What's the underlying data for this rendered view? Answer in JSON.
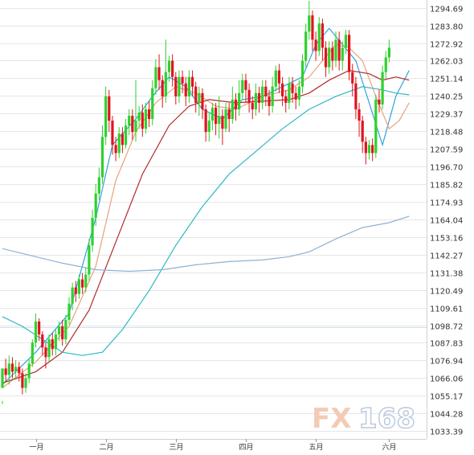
{
  "chart_data": {
    "type": "candlestick",
    "instrument_note": "",
    "ylim": [
      1028.5,
      1299.5
    ],
    "y_ticks": [
      "1294.69",
      "1283.80",
      "1272.92",
      "1262.03",
      "1251.14",
      "1240.25",
      "1229.37",
      "1218.48",
      "1207.59",
      "1196.70",
      "1185.82",
      "1174.93",
      "1164.04",
      "1153.16",
      "1142.27",
      "1131.38",
      "1120.49",
      "1109.61",
      "1098.72",
      "1087.83",
      "1076.94",
      "1066.06",
      "1055.17",
      "1044.28",
      "1033.39"
    ],
    "x_ticks": [
      {
        "label": "一月",
        "bar": 10
      },
      {
        "label": "二月",
        "bar": 31
      },
      {
        "label": "三月",
        "bar": 52
      },
      {
        "label": "四月",
        "bar": 73
      },
      {
        "label": "五月",
        "bar": 94
      },
      {
        "label": "六月",
        "bar": 116
      }
    ],
    "grid": true,
    "colors": {
      "up": "#2ed12e",
      "down": "#e0141e",
      "ma_short": "#2fa3dd",
      "ma_tan": "#e8a27c",
      "ma_red": "#b22a2a",
      "ma_teal": "#31b6c6",
      "ma_long": "#8fb1d6"
    },
    "candles": [
      [
        1060,
        1072,
        1052,
        1050
      ],
      [
        1072,
        1068,
        1078,
        1064
      ],
      [
        1068,
        1075,
        1080,
        1062
      ],
      [
        1075,
        1070,
        1079,
        1066
      ],
      [
        1070,
        1073,
        1077,
        1065
      ],
      [
        1073,
        1069,
        1076,
        1064
      ],
      [
        1069,
        1060,
        1072,
        1056
      ],
      [
        1060,
        1066,
        1069,
        1057
      ],
      [
        1066,
        1075,
        1078,
        1063
      ],
      [
        1075,
        1088,
        1090,
        1073
      ],
      [
        1088,
        1101,
        1106,
        1085
      ],
      [
        1101,
        1093,
        1103,
        1089
      ],
      [
        1093,
        1085,
        1095,
        1080
      ],
      [
        1085,
        1079,
        1088,
        1072
      ],
      [
        1079,
        1090,
        1093,
        1076
      ],
      [
        1090,
        1084,
        1094,
        1080
      ],
      [
        1084,
        1093,
        1096,
        1080
      ],
      [
        1093,
        1098,
        1101,
        1089
      ],
      [
        1098,
        1090,
        1102,
        1086
      ],
      [
        1090,
        1102,
        1105,
        1087
      ],
      [
        1102,
        1112,
        1116,
        1099
      ],
      [
        1112,
        1122,
        1125,
        1108
      ],
      [
        1122,
        1118,
        1126,
        1113
      ],
      [
        1118,
        1127,
        1130,
        1115
      ],
      [
        1127,
        1122,
        1131,
        1118
      ],
      [
        1122,
        1130,
        1134,
        1119
      ],
      [
        1130,
        1148,
        1152,
        1126
      ],
      [
        1148,
        1165,
        1170,
        1144
      ],
      [
        1165,
        1180,
        1186,
        1160
      ],
      [
        1180,
        1190,
        1196,
        1176
      ],
      [
        1190,
        1215,
        1222,
        1186
      ],
      [
        1215,
        1240,
        1246,
        1210
      ],
      [
        1240,
        1225,
        1244,
        1218
      ],
      [
        1225,
        1210,
        1228,
        1204
      ],
      [
        1210,
        1205,
        1215,
        1200
      ],
      [
        1205,
        1217,
        1221,
        1202
      ],
      [
        1217,
        1210,
        1221,
        1205
      ],
      [
        1210,
        1222,
        1226,
        1208
      ],
      [
        1222,
        1228,
        1232,
        1216
      ],
      [
        1228,
        1218,
        1232,
        1213
      ],
      [
        1218,
        1225,
        1250,
        1212
      ],
      [
        1225,
        1230,
        1234,
        1220
      ],
      [
        1230,
        1220,
        1235,
        1215
      ],
      [
        1220,
        1232,
        1236,
        1217
      ],
      [
        1232,
        1226,
        1237,
        1221
      ],
      [
        1226,
        1245,
        1250,
        1222
      ],
      [
        1245,
        1258,
        1263,
        1241
      ],
      [
        1258,
        1250,
        1266,
        1244
      ],
      [
        1250,
        1240,
        1253,
        1233
      ],
      [
        1240,
        1255,
        1275,
        1236
      ],
      [
        1255,
        1262,
        1265,
        1249
      ],
      [
        1262,
        1252,
        1266,
        1246
      ],
      [
        1252,
        1240,
        1255,
        1235
      ],
      [
        1240,
        1252,
        1256,
        1236
      ],
      [
        1252,
        1248,
        1256,
        1242
      ],
      [
        1248,
        1240,
        1252,
        1234
      ],
      [
        1240,
        1252,
        1256,
        1236
      ],
      [
        1252,
        1246,
        1256,
        1240
      ],
      [
        1246,
        1236,
        1249,
        1230
      ],
      [
        1236,
        1242,
        1246,
        1228
      ],
      [
        1242,
        1232,
        1245,
        1226
      ],
      [
        1232,
        1218,
        1235,
        1212
      ],
      [
        1218,
        1225,
        1230,
        1212
      ],
      [
        1225,
        1233,
        1236,
        1219
      ],
      [
        1233,
        1223,
        1236,
        1216
      ],
      [
        1223,
        1228,
        1240,
        1214
      ],
      [
        1228,
        1220,
        1232,
        1210
      ],
      [
        1220,
        1232,
        1236,
        1218
      ],
      [
        1232,
        1226,
        1236,
        1218
      ],
      [
        1226,
        1238,
        1246,
        1223
      ],
      [
        1238,
        1232,
        1242,
        1225
      ],
      [
        1232,
        1242,
        1250,
        1228
      ],
      [
        1242,
        1250,
        1254,
        1238
      ],
      [
        1250,
        1244,
        1254,
        1236
      ],
      [
        1244,
        1236,
        1248,
        1230
      ],
      [
        1236,
        1232,
        1240,
        1226
      ],
      [
        1232,
        1242,
        1248,
        1228
      ],
      [
        1242,
        1236,
        1246,
        1230
      ],
      [
        1236,
        1246,
        1250,
        1232
      ],
      [
        1246,
        1240,
        1250,
        1234
      ],
      [
        1240,
        1234,
        1244,
        1228
      ],
      [
        1234,
        1246,
        1252,
        1230
      ],
      [
        1246,
        1256,
        1259,
        1243
      ],
      [
        1256,
        1248,
        1260,
        1242
      ],
      [
        1248,
        1240,
        1252,
        1234
      ],
      [
        1240,
        1236,
        1244,
        1230
      ],
      [
        1236,
        1248,
        1252,
        1232
      ],
      [
        1248,
        1242,
        1252,
        1236
      ],
      [
        1242,
        1238,
        1246,
        1232
      ],
      [
        1238,
        1246,
        1250,
        1234
      ],
      [
        1246,
        1262,
        1266,
        1242
      ],
      [
        1262,
        1280,
        1285,
        1258
      ],
      [
        1280,
        1290,
        1299,
        1275
      ],
      [
        1290,
        1275,
        1293,
        1268
      ],
      [
        1275,
        1268,
        1280,
        1262
      ],
      [
        1268,
        1285,
        1289,
        1265
      ],
      [
        1285,
        1270,
        1288,
        1262
      ],
      [
        1270,
        1258,
        1274,
        1252
      ],
      [
        1258,
        1270,
        1274,
        1254
      ],
      [
        1270,
        1262,
        1274,
        1256
      ],
      [
        1262,
        1275,
        1280,
        1258
      ],
      [
        1275,
        1262,
        1280,
        1256
      ],
      [
        1262,
        1270,
        1274,
        1256
      ],
      [
        1270,
        1278,
        1281,
        1266
      ],
      [
        1278,
        1255,
        1281,
        1250
      ],
      [
        1255,
        1248,
        1260,
        1240
      ],
      [
        1248,
        1232,
        1252,
        1226
      ],
      [
        1232,
        1225,
        1236,
        1215
      ],
      [
        1225,
        1212,
        1228,
        1205
      ],
      [
        1212,
        1205,
        1215,
        1198
      ],
      [
        1205,
        1210,
        1213,
        1201
      ],
      [
        1210,
        1205,
        1214,
        1200
      ],
      [
        1205,
        1238,
        1241,
        1202
      ],
      [
        1238,
        1235,
        1244,
        1230
      ],
      [
        1235,
        1255,
        1259,
        1232
      ],
      [
        1255,
        1264,
        1268,
        1251
      ],
      [
        1264,
        1270,
        1275,
        1261
      ]
    ],
    "ma_series": [
      {
        "key": "ma_short",
        "values": [
          [
            0,
            1062
          ],
          [
            10,
            1082
          ],
          [
            20,
            1106
          ],
          [
            28,
            1165
          ],
          [
            33,
            1210
          ],
          [
            40,
            1226
          ],
          [
            45,
            1240
          ],
          [
            50,
            1252
          ],
          [
            55,
            1246
          ],
          [
            60,
            1232
          ],
          [
            66,
            1226
          ],
          [
            72,
            1238
          ],
          [
            78,
            1240
          ],
          [
            84,
            1246
          ],
          [
            90,
            1252
          ],
          [
            94,
            1272
          ],
          [
            98,
            1282
          ],
          [
            102,
            1272
          ],
          [
            106,
            1262
          ],
          [
            110,
            1236
          ],
          [
            114,
            1210
          ],
          [
            118,
            1240
          ],
          [
            122,
            1256
          ]
        ]
      },
      {
        "key": "ma_tan",
        "values": [
          [
            0,
            1060
          ],
          [
            10,
            1076
          ],
          [
            20,
            1098
          ],
          [
            28,
            1135
          ],
          [
            34,
            1188
          ],
          [
            40,
            1218
          ],
          [
            46,
            1236
          ],
          [
            52,
            1246
          ],
          [
            58,
            1242
          ],
          [
            64,
            1234
          ],
          [
            70,
            1232
          ],
          [
            78,
            1240
          ],
          [
            86,
            1244
          ],
          [
            92,
            1252
          ],
          [
            96,
            1262
          ],
          [
            100,
            1272
          ],
          [
            104,
            1270
          ],
          [
            108,
            1262
          ],
          [
            112,
            1240
          ],
          [
            116,
            1220
          ],
          [
            119,
            1225
          ],
          [
            122,
            1236
          ]
        ]
      },
      {
        "key": "ma_red",
        "values": [
          [
            0,
            1063
          ],
          [
            10,
            1070
          ],
          [
            18,
            1082
          ],
          [
            26,
            1108
          ],
          [
            34,
            1150
          ],
          [
            42,
            1192
          ],
          [
            50,
            1222
          ],
          [
            56,
            1234
          ],
          [
            62,
            1238
          ],
          [
            70,
            1236
          ],
          [
            78,
            1237
          ],
          [
            86,
            1238
          ],
          [
            92,
            1242
          ],
          [
            98,
            1250
          ],
          [
            104,
            1256
          ],
          [
            110,
            1254
          ],
          [
            114,
            1250
          ],
          [
            118,
            1252
          ],
          [
            122,
            1250
          ]
        ]
      },
      {
        "key": "ma_teal",
        "values": [
          [
            0,
            1104
          ],
          [
            6,
            1098
          ],
          [
            12,
            1090
          ],
          [
            18,
            1082
          ],
          [
            24,
            1080
          ],
          [
            30,
            1082
          ],
          [
            36,
            1096
          ],
          [
            44,
            1120
          ],
          [
            52,
            1148
          ],
          [
            60,
            1172
          ],
          [
            68,
            1192
          ],
          [
            76,
            1206
          ],
          [
            84,
            1220
          ],
          [
            92,
            1232
          ],
          [
            100,
            1240
          ],
          [
            108,
            1246
          ],
          [
            114,
            1244
          ],
          [
            118,
            1242
          ],
          [
            122,
            1241
          ]
        ]
      },
      {
        "key": "ma_long",
        "values": [
          [
            0,
            1146
          ],
          [
            8,
            1142
          ],
          [
            18,
            1137
          ],
          [
            28,
            1133
          ],
          [
            38,
            1132
          ],
          [
            48,
            1133
          ],
          [
            58,
            1136
          ],
          [
            68,
            1138
          ],
          [
            78,
            1139
          ],
          [
            86,
            1141
          ],
          [
            92,
            1144
          ],
          [
            100,
            1152
          ],
          [
            108,
            1159
          ],
          [
            116,
            1162
          ],
          [
            122,
            1166
          ]
        ]
      }
    ]
  },
  "watermark": {
    "fx": "FX",
    "num": "168"
  }
}
